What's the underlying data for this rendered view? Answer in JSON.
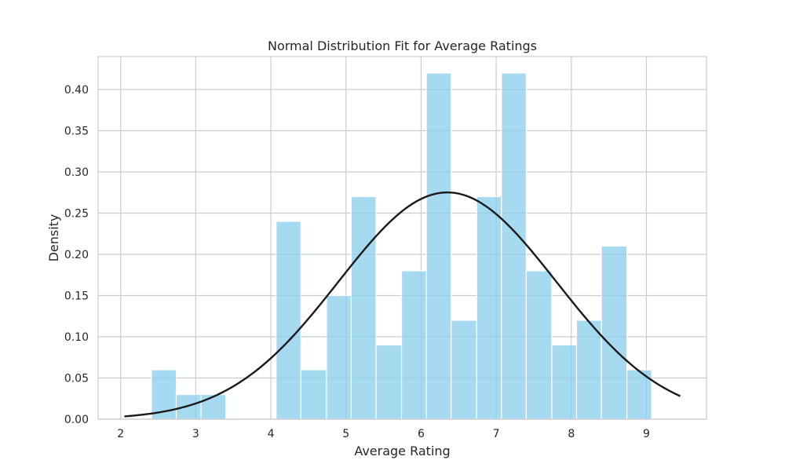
{
  "chart_data": {
    "type": "bar",
    "title": "Normal Distribution Fit for Average Ratings",
    "xlabel": "Average Rating",
    "ylabel": "Density",
    "xlim": [
      1.7,
      9.8
    ],
    "ylim": [
      0,
      0.44
    ],
    "grid": true,
    "x_ticks": [
      2,
      3,
      4,
      5,
      6,
      7,
      8,
      9
    ],
    "y_ticks": [
      0.0,
      0.05,
      0.1,
      0.15,
      0.2,
      0.25,
      0.3,
      0.35,
      0.4
    ],
    "x_tick_labels": [
      "2",
      "3",
      "4",
      "5",
      "6",
      "7",
      "8",
      "9"
    ],
    "y_tick_labels": [
      "0.00",
      "0.05",
      "0.10",
      "0.15",
      "0.20",
      "0.25",
      "0.30",
      "0.35",
      "0.40"
    ],
    "histogram": {
      "color": "#87CEEB",
      "bins": [
        {
          "x0": 2.41,
          "x1": 2.74,
          "density": 0.06
        },
        {
          "x0": 2.74,
          "x1": 3.07,
          "density": 0.03
        },
        {
          "x0": 3.07,
          "x1": 3.4,
          "density": 0.03
        },
        {
          "x0": 3.4,
          "x1": 3.74,
          "density": 0.0
        },
        {
          "x0": 3.74,
          "x1": 4.07,
          "density": 0.0
        },
        {
          "x0": 4.07,
          "x1": 4.4,
          "density": 0.24
        },
        {
          "x0": 4.4,
          "x1": 4.74,
          "density": 0.06
        },
        {
          "x0": 4.74,
          "x1": 5.07,
          "density": 0.15
        },
        {
          "x0": 5.07,
          "x1": 5.4,
          "density": 0.27
        },
        {
          "x0": 5.4,
          "x1": 5.74,
          "density": 0.09
        },
        {
          "x0": 5.74,
          "x1": 6.07,
          "density": 0.18
        },
        {
          "x0": 6.07,
          "x1": 6.4,
          "density": 0.42
        },
        {
          "x0": 6.4,
          "x1": 6.74,
          "density": 0.12
        },
        {
          "x0": 6.74,
          "x1": 7.07,
          "density": 0.27
        },
        {
          "x0": 7.07,
          "x1": 7.4,
          "density": 0.42
        },
        {
          "x0": 7.4,
          "x1": 7.74,
          "density": 0.18
        },
        {
          "x0": 7.74,
          "x1": 8.07,
          "density": 0.09
        },
        {
          "x0": 8.07,
          "x1": 8.4,
          "density": 0.12
        },
        {
          "x0": 8.4,
          "x1": 8.74,
          "density": 0.21
        },
        {
          "x0": 8.74,
          "x1": 9.07,
          "density": 0.06
        }
      ]
    },
    "fit": {
      "type": "normal",
      "mu": 6.35,
      "sigma": 1.45,
      "x_range": [
        2.05,
        9.45
      ],
      "color": "#1a1a1a"
    }
  }
}
